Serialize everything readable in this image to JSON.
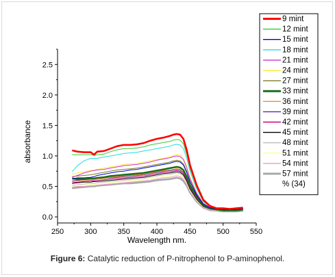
{
  "caption": {
    "label": "Figure 6:",
    "text": " Catalytic reduction of P-nitrophenol to P-aminophenol."
  },
  "chart_data": {
    "type": "line",
    "xlabel": "Wavelength nm.",
    "ylabel": "absorbance",
    "xlim": [
      250,
      550
    ],
    "ylim": [
      -0.1,
      2.75
    ],
    "x_ticks": [
      "250",
      "300",
      "350",
      "400",
      "450",
      "500",
      "550"
    ],
    "y_ticks": [
      "0.0",
      "0.5",
      "1.0",
      "1.5",
      "2.0",
      "2.5"
    ],
    "grid": false,
    "legend_position": "right",
    "x": [
      272,
      280,
      290,
      300,
      305,
      310,
      320,
      330,
      340,
      350,
      360,
      370,
      380,
      390,
      400,
      410,
      420,
      425,
      430,
      435,
      440,
      445,
      450,
      460,
      470,
      480,
      490,
      500,
      510,
      520,
      530
    ],
    "series": [
      {
        "name": "9 mint",
        "color": "#ff0000",
        "width": 2.6,
        "values": [
          1.09,
          1.07,
          1.06,
          1.06,
          1.02,
          1.07,
          1.08,
          1.12,
          1.16,
          1.18,
          1.18,
          1.19,
          1.21,
          1.25,
          1.28,
          1.3,
          1.33,
          1.35,
          1.36,
          1.35,
          1.28,
          1.1,
          0.85,
          0.52,
          0.28,
          0.18,
          0.14,
          0.14,
          0.13,
          0.14,
          0.15
        ]
      },
      {
        "name": "12 mint",
        "color": "#33cc33",
        "width": 1,
        "values": [
          1.02,
          1.02,
          1.02,
          1.02,
          1.01,
          1.02,
          1.03,
          1.07,
          1.1,
          1.12,
          1.12,
          1.13,
          1.15,
          1.18,
          1.2,
          1.22,
          1.24,
          1.26,
          1.27,
          1.26,
          1.2,
          1.03,
          0.8,
          0.49,
          0.26,
          0.17,
          0.14,
          0.13,
          0.13,
          0.13,
          0.14
        ]
      },
      {
        "name": "15 mint",
        "color": "#0000cc",
        "width": 1,
        "values": [
          0.62,
          0.64,
          0.64,
          0.65,
          0.66,
          0.68,
          0.7,
          0.72,
          0.74,
          0.75,
          0.77,
          0.78,
          0.8,
          0.82,
          0.84,
          0.86,
          0.88,
          0.9,
          0.91,
          0.9,
          0.85,
          0.73,
          0.58,
          0.36,
          0.21,
          0.15,
          0.13,
          0.12,
          0.12,
          0.12,
          0.13
        ]
      },
      {
        "name": "18 mint",
        "color": "#22dddd",
        "width": 1,
        "values": [
          0.74,
          0.84,
          0.92,
          0.96,
          0.96,
          0.96,
          0.98,
          1.0,
          1.02,
          1.04,
          1.05,
          1.06,
          1.08,
          1.1,
          1.12,
          1.14,
          1.16,
          1.18,
          1.19,
          1.18,
          1.12,
          0.97,
          0.75,
          0.46,
          0.25,
          0.17,
          0.14,
          0.13,
          0.13,
          0.13,
          0.14
        ]
      },
      {
        "name": "21 mint",
        "color": "#cc33cc",
        "width": 1,
        "values": [
          0.65,
          0.68,
          0.72,
          0.75,
          0.76,
          0.77,
          0.78,
          0.8,
          0.82,
          0.84,
          0.85,
          0.86,
          0.88,
          0.9,
          0.93,
          0.95,
          0.97,
          0.99,
          1.0,
          0.99,
          0.94,
          0.81,
          0.63,
          0.39,
          0.22,
          0.16,
          0.13,
          0.12,
          0.12,
          0.12,
          0.13
        ]
      },
      {
        "name": "24 mint",
        "color": "#ffee33",
        "width": 1,
        "values": [
          0.7,
          0.72,
          0.74,
          0.76,
          0.77,
          0.78,
          0.8,
          0.82,
          0.84,
          0.86,
          0.87,
          0.88,
          0.9,
          0.92,
          0.94,
          0.96,
          0.99,
          1.01,
          1.02,
          1.01,
          0.96,
          0.83,
          0.65,
          0.4,
          0.23,
          0.16,
          0.13,
          0.12,
          0.12,
          0.12,
          0.13
        ]
      },
      {
        "name": "27 mint",
        "color": "#7a7a22",
        "width": 1,
        "values": [
          0.66,
          0.67,
          0.68,
          0.69,
          0.7,
          0.71,
          0.73,
          0.75,
          0.77,
          0.78,
          0.79,
          0.8,
          0.82,
          0.84,
          0.86,
          0.88,
          0.9,
          0.92,
          0.93,
          0.92,
          0.87,
          0.75,
          0.59,
          0.37,
          0.21,
          0.15,
          0.13,
          0.12,
          0.12,
          0.12,
          0.13
        ]
      },
      {
        "name": "33 mint",
        "color": "#1a6e1a",
        "width": 2.6,
        "values": [
          0.63,
          0.62,
          0.62,
          0.63,
          0.63,
          0.64,
          0.65,
          0.67,
          0.68,
          0.69,
          0.7,
          0.71,
          0.72,
          0.74,
          0.76,
          0.78,
          0.8,
          0.81,
          0.82,
          0.81,
          0.77,
          0.66,
          0.52,
          0.33,
          0.19,
          0.14,
          0.12,
          0.11,
          0.11,
          0.11,
          0.12
        ]
      },
      {
        "name": "36 mint",
        "color": "#ff8822",
        "width": 1,
        "values": [
          0.58,
          0.59,
          0.6,
          0.61,
          0.61,
          0.62,
          0.63,
          0.65,
          0.66,
          0.67,
          0.68,
          0.69,
          0.7,
          0.72,
          0.74,
          0.76,
          0.77,
          0.78,
          0.79,
          0.78,
          0.74,
          0.64,
          0.5,
          0.32,
          0.19,
          0.14,
          0.12,
          0.11,
          0.11,
          0.11,
          0.12
        ]
      },
      {
        "name": "39 mint",
        "color": "#5a2aa0",
        "width": 1,
        "values": [
          0.59,
          0.6,
          0.6,
          0.61,
          0.61,
          0.62,
          0.63,
          0.64,
          0.65,
          0.66,
          0.67,
          0.68,
          0.69,
          0.71,
          0.73,
          0.75,
          0.76,
          0.77,
          0.78,
          0.77,
          0.73,
          0.63,
          0.49,
          0.31,
          0.18,
          0.13,
          0.12,
          0.11,
          0.11,
          0.11,
          0.12
        ]
      },
      {
        "name": "42 mint",
        "color": "#cc0077",
        "width": 1,
        "values": [
          0.56,
          0.57,
          0.58,
          0.59,
          0.59,
          0.6,
          0.61,
          0.62,
          0.63,
          0.64,
          0.65,
          0.66,
          0.67,
          0.69,
          0.71,
          0.73,
          0.74,
          0.75,
          0.76,
          0.75,
          0.71,
          0.61,
          0.48,
          0.3,
          0.18,
          0.13,
          0.11,
          0.11,
          0.11,
          0.11,
          0.12
        ]
      },
      {
        "name": "45 mint",
        "color": "#000000",
        "width": 1,
        "values": [
          0.55,
          0.56,
          0.57,
          0.57,
          0.58,
          0.58,
          0.59,
          0.6,
          0.61,
          0.62,
          0.63,
          0.64,
          0.65,
          0.67,
          0.69,
          0.71,
          0.72,
          0.73,
          0.74,
          0.73,
          0.69,
          0.59,
          0.46,
          0.29,
          0.17,
          0.13,
          0.11,
          0.1,
          0.1,
          0.1,
          0.11
        ]
      },
      {
        "name": "48 mint",
        "color": "#bbbbbb",
        "width": 1,
        "values": [
          0.52,
          0.53,
          0.54,
          0.55,
          0.55,
          0.56,
          0.57,
          0.58,
          0.59,
          0.6,
          0.61,
          0.62,
          0.63,
          0.65,
          0.67,
          0.69,
          0.7,
          0.71,
          0.72,
          0.71,
          0.67,
          0.57,
          0.45,
          0.28,
          0.17,
          0.12,
          0.11,
          0.1,
          0.1,
          0.1,
          0.11
        ]
      },
      {
        "name": "51 mint",
        "color": "#ffff88",
        "width": 1,
        "values": [
          0.5,
          0.51,
          0.52,
          0.53,
          0.53,
          0.54,
          0.55,
          0.56,
          0.57,
          0.58,
          0.59,
          0.6,
          0.61,
          0.62,
          0.64,
          0.66,
          0.67,
          0.68,
          0.69,
          0.68,
          0.64,
          0.55,
          0.43,
          0.27,
          0.16,
          0.12,
          0.1,
          0.1,
          0.1,
          0.1,
          0.11
        ]
      },
      {
        "name": "54 mint",
        "color": "#ee99cc",
        "width": 1,
        "values": [
          0.49,
          0.5,
          0.5,
          0.51,
          0.51,
          0.52,
          0.53,
          0.54,
          0.55,
          0.56,
          0.57,
          0.58,
          0.59,
          0.6,
          0.62,
          0.64,
          0.65,
          0.66,
          0.67,
          0.66,
          0.62,
          0.53,
          0.42,
          0.26,
          0.15,
          0.11,
          0.1,
          0.1,
          0.1,
          0.1,
          0.11
        ]
      },
      {
        "name": "57 mint",
        "color": "#a8a8a8",
        "width": 2.6,
        "values": [
          0.47,
          0.48,
          0.49,
          0.5,
          0.5,
          0.51,
          0.52,
          0.53,
          0.54,
          0.55,
          0.55,
          0.56,
          0.57,
          0.58,
          0.6,
          0.61,
          0.62,
          0.63,
          0.64,
          0.63,
          0.59,
          0.51,
          0.4,
          0.25,
          0.15,
          0.11,
          0.1,
          0.09,
          0.09,
          0.09,
          0.1
        ]
      }
    ],
    "legend_extra": "% (34)"
  }
}
